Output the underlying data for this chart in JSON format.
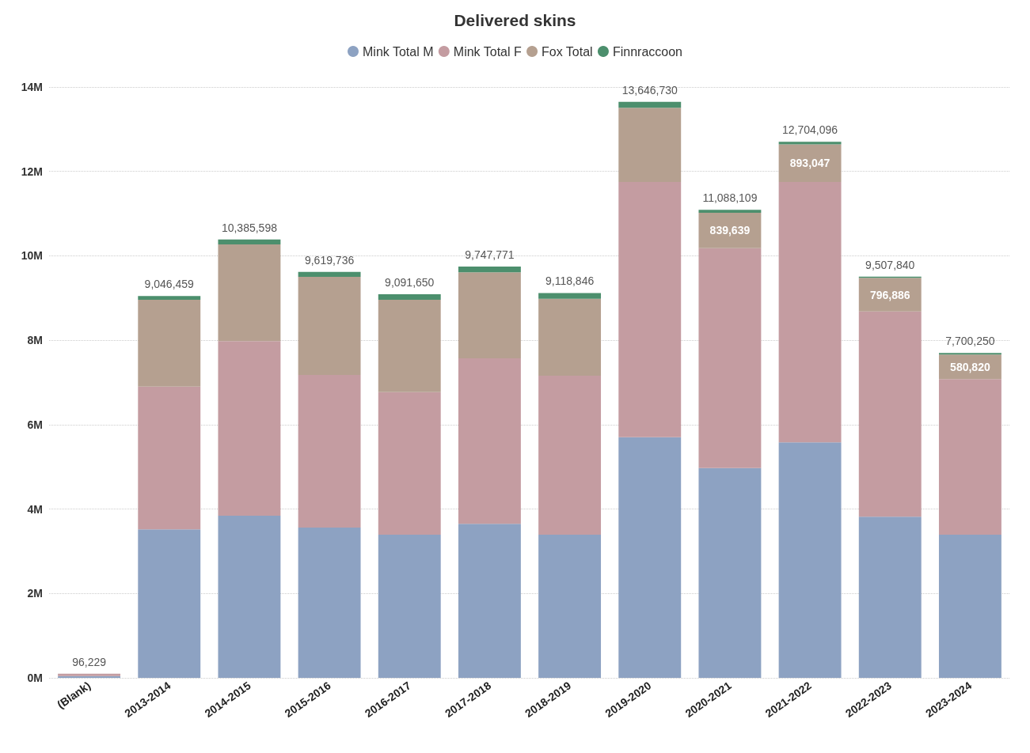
{
  "chart_data": {
    "type": "bar",
    "title": "Delivered skins",
    "stacked": true,
    "categories": [
      "(Blank)",
      "2013-2014",
      "2014-2015",
      "2015-2016",
      "2016-2017",
      "2017-2018",
      "2018-2019",
      "2019-2020",
      "2020-2021",
      "2021-2022",
      "2022-2023",
      "2023-2024"
    ],
    "series": [
      {
        "name": "Mink Total M",
        "color": "#8da2c2",
        "values": [
          40000,
          3520000,
          3840000,
          3560000,
          3390000,
          3650000,
          3390000,
          5700000,
          4970000,
          5580000,
          3820000,
          3390000
        ]
      },
      {
        "name": "Mink Total F",
        "color": "#c49ca1",
        "values": [
          56229,
          3380000,
          4140000,
          3620000,
          3380000,
          3920000,
          3770000,
          6050000,
          5210000,
          6170000,
          4860000,
          3690000
        ]
      },
      {
        "name": "Fox Total",
        "color": "#b5a090",
        "values": [
          0,
          2060000,
          2290000,
          2320000,
          2190000,
          2040000,
          1820000,
          1760000,
          839639,
          893047,
          796886,
          580820
        ],
        "value_labels": [
          null,
          null,
          null,
          null,
          null,
          null,
          null,
          null,
          "839,639",
          "893,047",
          "796,886",
          "580,820"
        ]
      },
      {
        "name": "Finnraccoon",
        "color": "#4c8f6d",
        "values": [
          null,
          86459,
          115598,
          119736,
          131650,
          137771,
          138846,
          136730,
          68470,
          61049,
          30954,
          39430
        ]
      }
    ],
    "totals": [
      "96,229",
      "9,046,459",
      "10,385,598",
      "9,619,736",
      "9,091,650",
      "9,747,771",
      "9,118,846",
      "13,646,730",
      "11,088,109",
      "12,704,096",
      "9,507,840",
      "7,700,250"
    ],
    "ylim": [
      0,
      14000000
    ],
    "yticks": [
      {
        "value": 0,
        "label": "0M"
      },
      {
        "value": 2000000,
        "label": "2M"
      },
      {
        "value": 4000000,
        "label": "4M"
      },
      {
        "value": 6000000,
        "label": "6M"
      },
      {
        "value": 8000000,
        "label": "8M"
      },
      {
        "value": 10000000,
        "label": "10M"
      },
      {
        "value": 12000000,
        "label": "12M"
      },
      {
        "value": 14000000,
        "label": "14M"
      }
    ],
    "grid": "y",
    "legend": "top"
  }
}
